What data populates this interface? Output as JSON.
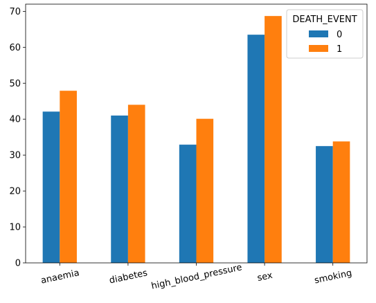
{
  "chart_data": {
    "type": "bar",
    "categories": [
      "anaemia",
      "diabetes",
      "high_blood_pressure",
      "sex",
      "smoking"
    ],
    "series": [
      {
        "name": "0",
        "values": [
          42.1,
          41.0,
          32.9,
          63.5,
          32.5
        ],
        "color": "#1f77b4"
      },
      {
        "name": "1",
        "values": [
          47.9,
          44.0,
          40.1,
          68.7,
          33.8
        ],
        "color": "#ff7f0e"
      }
    ],
    "legend": {
      "title": "DEATH_EVENT",
      "position": "top-right"
    },
    "ylim": [
      0,
      72
    ],
    "yticks": [
      "0",
      "10",
      "20",
      "30",
      "40",
      "50",
      "60",
      "70"
    ],
    "xtick_rotation": -12,
    "grid": false,
    "title": "",
    "xlabel": "",
    "ylabel": ""
  }
}
